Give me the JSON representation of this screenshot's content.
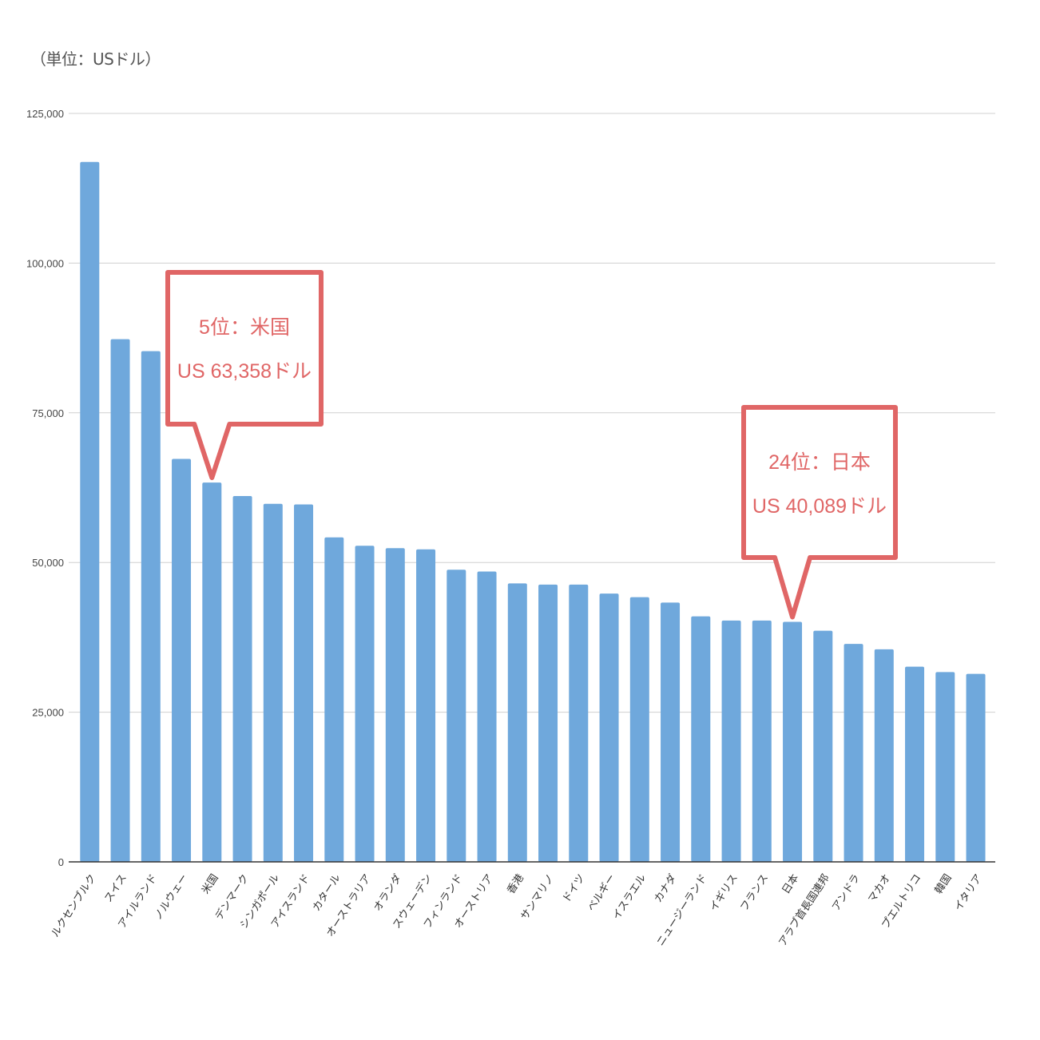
{
  "chart_data": {
    "type": "bar",
    "unit_label": "（単位：USドル）",
    "ylim": [
      0,
      125000
    ],
    "yticks": [
      0,
      25000,
      50000,
      75000,
      100000,
      125000
    ],
    "ytick_labels": [
      "0",
      "25,000",
      "50,000",
      "75,000",
      "100,000",
      "125,000"
    ],
    "grid": true,
    "bar_color": "#6fa8dc",
    "categories": [
      "ルクセンブルク",
      "スイス",
      "アイルランド",
      "ノルウェー",
      "米国",
      "デンマーク",
      "シンガポール",
      "アイスランド",
      "カタール",
      "オーストラリア",
      "オランダ",
      "スウェーデン",
      "フィンランド",
      "オーストリア",
      "香港",
      "サンマリノ",
      "ドイツ",
      "ベルギー",
      "イスラエル",
      "カナダ",
      "ニュージーランド",
      "イギリス",
      "フランス",
      "日本",
      "アラブ首長国連邦",
      "アンドラ",
      "マカオ",
      "プエルトリコ",
      "韓国",
      "イタリア"
    ],
    "values": [
      116900,
      87300,
      85300,
      67300,
      63358,
      61100,
      59800,
      59700,
      54200,
      52800,
      52400,
      52200,
      48800,
      48500,
      46500,
      46300,
      46300,
      44800,
      44200,
      43300,
      41000,
      40300,
      40300,
      40089,
      38600,
      36400,
      35500,
      32600,
      31700,
      31400
    ],
    "annotations": [
      {
        "category_index": 4,
        "color": "#e06666",
        "line1": "5位：米国",
        "line2": "US 63,358ドル"
      },
      {
        "category_index": 23,
        "color": "#e06666",
        "line1": "24位：日本",
        "line2": "US 40,089ドル"
      }
    ]
  }
}
